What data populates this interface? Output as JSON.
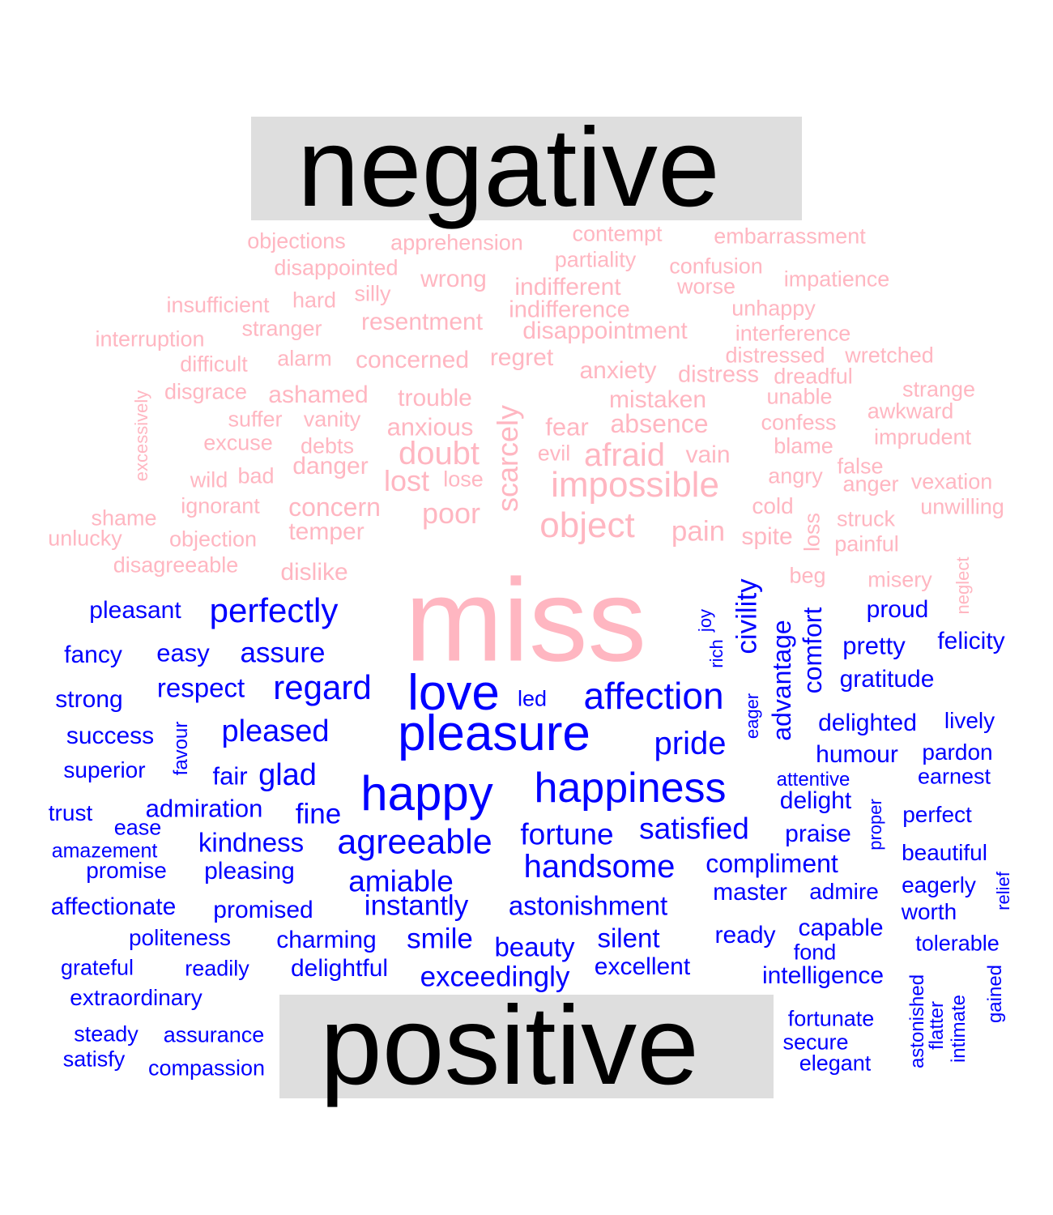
{
  "colors": {
    "negative": "#ffb6c1",
    "positive": "#0000ff",
    "group_box": "#dedede",
    "group_label": "#000000"
  },
  "groups": {
    "negative": "negative",
    "positive": "positive"
  },
  "negative_words": [
    "objections",
    "apprehension",
    "contempt",
    "embarrassment",
    "partiality",
    "disappointed",
    "confusion",
    "wrong",
    "indifferent",
    "worse",
    "impatience",
    "silly",
    "hard",
    "insufficient",
    "indifference",
    "unhappy",
    "resentment",
    "stranger",
    "disappointment",
    "interference",
    "interruption",
    "regret",
    "alarm",
    "concerned",
    "difficult",
    "distressed",
    "wretched",
    "anxiety",
    "distress",
    "dreadful",
    "strange",
    "disgrace",
    "ashamed",
    "trouble",
    "unable",
    "mistaken",
    "excessively",
    "awkward",
    "suffer",
    "vanity",
    "anxious",
    "absence",
    "confess",
    "fear",
    "imprudent",
    "excuse",
    "debts",
    "doubt",
    "blame",
    "scarcely",
    "afraid",
    "evil",
    "vain",
    "wild",
    "bad",
    "danger",
    "false",
    "angry",
    "lose",
    "lost",
    "anger",
    "vexation",
    "impossible",
    "ignorant",
    "unwilling",
    "shame",
    "concern",
    "cold",
    "struck",
    "poor",
    "object",
    "loss",
    "pain",
    "unlucky",
    "objection",
    "temper",
    "spite",
    "painful",
    "disagreeable",
    "neglect",
    "beg",
    "dislike",
    "misery",
    "miss"
  ],
  "positive_words": [
    "pleasant",
    "perfectly",
    "joy",
    "civility",
    "proud",
    "advantage",
    "comfort",
    "fancy",
    "easy",
    "assure",
    "rich",
    "pretty",
    "felicity",
    "strong",
    "respect",
    "regard",
    "love",
    "gratitude",
    "led",
    "affection",
    "lively",
    "eager",
    "success",
    "pleasure",
    "delighted",
    "pleased",
    "pride",
    "favour",
    "pardon",
    "humour",
    "superior",
    "glad",
    "fair",
    "attentive",
    "happiness",
    "happy",
    "earnest",
    "delight",
    "trust",
    "admiration",
    "proper",
    "fine",
    "perfect",
    "ease",
    "satisfied",
    "kindness",
    "fortune",
    "praise",
    "agreeable",
    "amazement",
    "beautiful",
    "compliment",
    "relief",
    "handsome",
    "promise",
    "pleasing",
    "amiable",
    "eagerly",
    "admire",
    "master",
    "affectionate",
    "astonishment",
    "instantly",
    "worth",
    "promised",
    "capable",
    "ready",
    "politeness",
    "charming",
    "smile",
    "silent",
    "tolerable",
    "beauty",
    "fond",
    "grateful",
    "astonished",
    "readily",
    "delightful",
    "excellent",
    "intelligence",
    "gained",
    "exceedingly",
    "intimate",
    "flatter",
    "extraordinary",
    "fortunate",
    "steady",
    "assurance",
    "secure",
    "satisfy",
    "elegant",
    "compassion"
  ]
}
